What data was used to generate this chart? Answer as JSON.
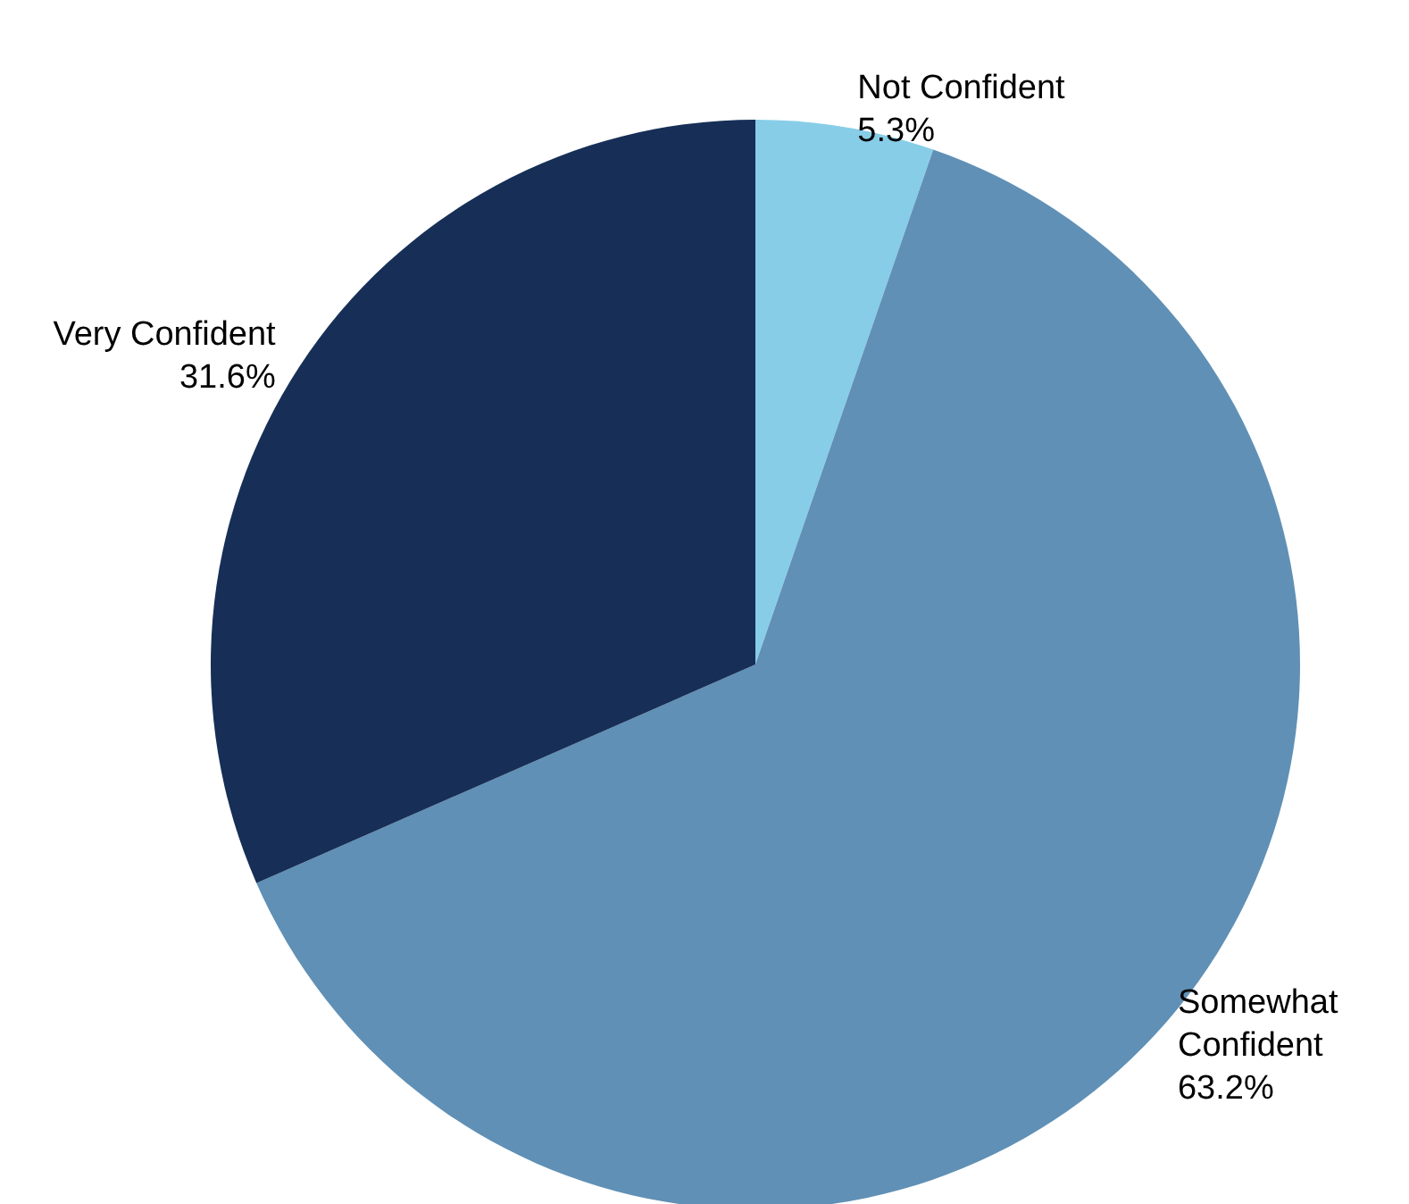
{
  "chart_data": {
    "type": "pie",
    "categories": [
      "Not Confident",
      "Somewhat Confident",
      "Very Confident"
    ],
    "values": [
      5.3,
      63.2,
      31.6
    ],
    "colors": [
      "#87cde8",
      "#6090b5",
      "#172f57"
    ],
    "value_labels": [
      "5.3%",
      "63.2%",
      "31.6%"
    ],
    "legend": false
  }
}
